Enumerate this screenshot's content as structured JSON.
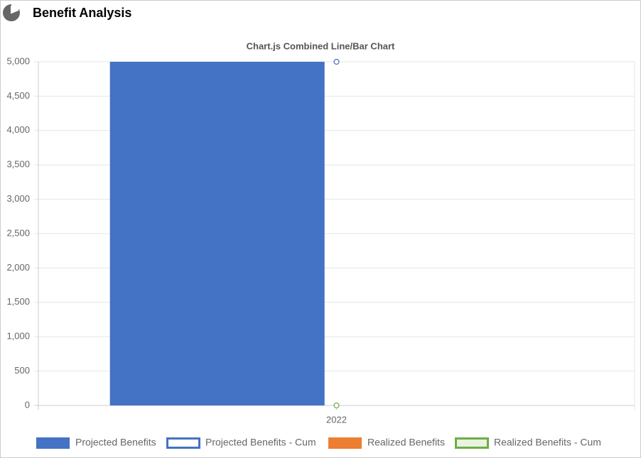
{
  "header": {
    "title": "Benefit Analysis"
  },
  "chart_data": {
    "type": "bar",
    "title": "Chart.js Combined Line/Bar Chart",
    "categories": [
      "2022"
    ],
    "series": [
      {
        "name": "Projected Benefits",
        "type": "bar",
        "color": "#4472c4",
        "values": [
          5000
        ]
      },
      {
        "name": "Projected Benefits - Cum",
        "type": "line",
        "color": "#4472c4",
        "values": [
          5000
        ]
      },
      {
        "name": "Realized Benefits",
        "type": "bar",
        "color": "#ed7d31",
        "values": [
          0
        ]
      },
      {
        "name": "Realized Benefits - Cum",
        "type": "line",
        "color": "#70ad47",
        "values": [
          0
        ]
      }
    ],
    "ylim": [
      0,
      5000
    ],
    "yticks": [
      0,
      500,
      {
        "value": 1000,
        "label": "1,000"
      },
      {
        "value": 1500,
        "label": "1,500"
      },
      {
        "value": 2000,
        "label": "2,000"
      },
      {
        "value": 2500,
        "label": "2,500"
      },
      {
        "value": 3000,
        "label": "3,000"
      },
      {
        "value": 3500,
        "label": "3,500"
      },
      {
        "value": 4000,
        "label": "4,000"
      },
      {
        "value": 4500,
        "label": "4,500"
      },
      {
        "value": 5000,
        "label": "5,000"
      }
    ],
    "grid": true,
    "legend": "bottom"
  }
}
